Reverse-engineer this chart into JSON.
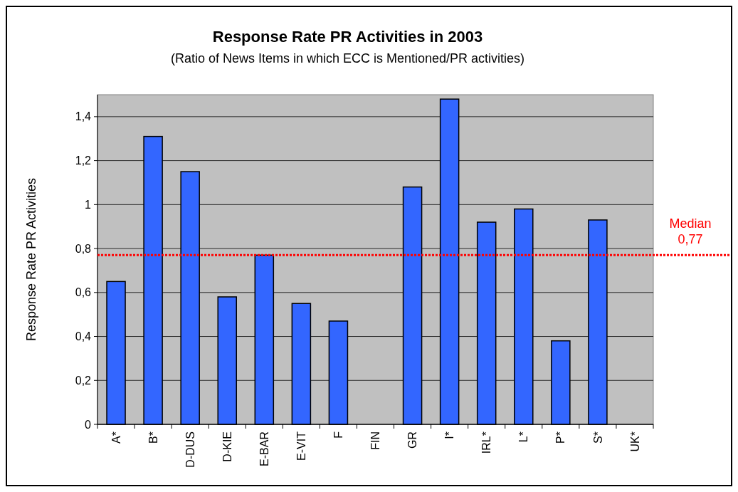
{
  "chart_data": {
    "type": "bar",
    "title": "Response Rate PR Activities in 2003",
    "subtitle": "(Ratio of News Items in which ECC is Mentioned/PR activities)",
    "ylabel": "Response Rate PR Activities",
    "categories": [
      "A*",
      "B*",
      "D-DUS",
      "D-KIE",
      "E-BAR",
      "E-VIT",
      "F",
      "FIN",
      "GR",
      "I*",
      "IRL*",
      "L*",
      "P*",
      "S*",
      "UK*"
    ],
    "values": [
      0.65,
      1.31,
      1.15,
      0.58,
      0.77,
      0.55,
      0.47,
      null,
      1.08,
      1.48,
      0.92,
      0.98,
      0.38,
      0.93,
      null
    ],
    "color": "#3366ff",
    "ylim": [
      0,
      1.5
    ],
    "yticks": [
      0,
      {
        "value": 0.2,
        "label": "0,2"
      },
      {
        "value": 0.4,
        "label": "0,4"
      },
      {
        "value": 0.6,
        "label": "0,6"
      },
      {
        "value": 0.8,
        "label": "0,8"
      },
      1,
      {
        "value": 1.2,
        "label": "1,2"
      },
      {
        "value": 1.4,
        "label": "1,4"
      }
    ],
    "grid": "y",
    "ref_lines": [
      {
        "axis": "y",
        "value": 0.77,
        "label": "Median 0,77",
        "color": "#ff0000",
        "line_style": "dotted"
      }
    ]
  }
}
